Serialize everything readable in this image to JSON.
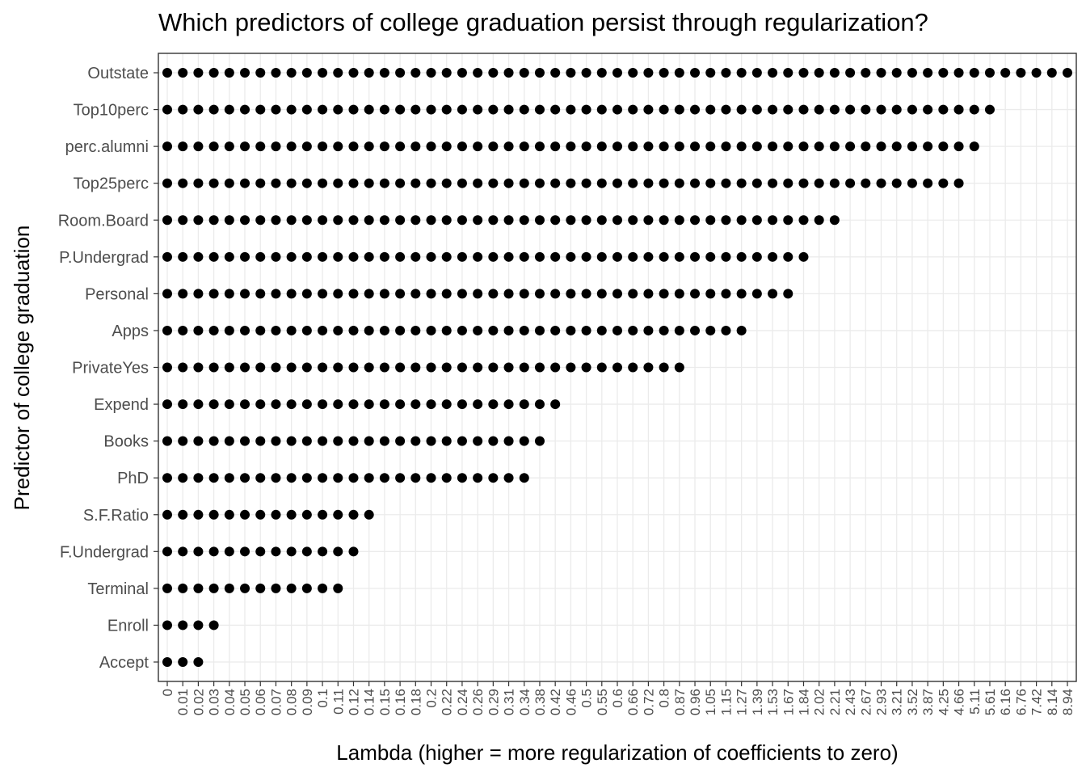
{
  "chart_data": {
    "type": "scatter",
    "title": "Which predictors of college graduation persist through regularization?",
    "xlabel": "Lambda (higher = more regularization of coefficients to zero)",
    "ylabel": "Predictor of college graduation",
    "x_axis_scale": "categorical",
    "grid": true,
    "x_tick_labels": [
      "0",
      "0.01",
      "0.02",
      "0.03",
      "0.04",
      "0.05",
      "0.06",
      "0.07",
      "0.08",
      "0.09",
      "0.1",
      "0.11",
      "0.12",
      "0.14",
      "0.15",
      "0.16",
      "0.18",
      "0.2",
      "0.22",
      "0.24",
      "0.26",
      "0.29",
      "0.31",
      "0.34",
      "0.38",
      "0.42",
      "0.46",
      "0.5",
      "0.55",
      "0.6",
      "0.66",
      "0.72",
      "0.8",
      "0.87",
      "0.96",
      "1.05",
      "1.15",
      "1.27",
      "1.39",
      "1.53",
      "1.67",
      "1.84",
      "2.02",
      "2.21",
      "2.43",
      "2.67",
      "2.93",
      "3.21",
      "3.52",
      "3.87",
      "4.25",
      "4.66",
      "5.11",
      "5.61",
      "6.16",
      "6.76",
      "7.42",
      "8.14",
      "8.94"
    ],
    "categories": [
      "Accept",
      "Enroll",
      "Terminal",
      "F.Undergrad",
      "S.F.Ratio",
      "PhD",
      "Books",
      "Expend",
      "PrivateYes",
      "Apps",
      "Personal",
      "P.Undergrad",
      "Room.Board",
      "Top25perc",
      "perc.alumni",
      "Top10perc",
      "Outstate"
    ],
    "series": [
      {
        "predictor": "Outstate",
        "max_lambda": 8.94
      },
      {
        "predictor": "Top10perc",
        "max_lambda": 5.61
      },
      {
        "predictor": "perc.alumni",
        "max_lambda": 5.11
      },
      {
        "predictor": "Top25perc",
        "max_lambda": 4.66
      },
      {
        "predictor": "Room.Board",
        "max_lambda": 2.21
      },
      {
        "predictor": "P.Undergrad",
        "max_lambda": 1.84
      },
      {
        "predictor": "Personal",
        "max_lambda": 1.67
      },
      {
        "predictor": "Apps",
        "max_lambda": 1.27
      },
      {
        "predictor": "PrivateYes",
        "max_lambda": 0.87
      },
      {
        "predictor": "Expend",
        "max_lambda": 0.42
      },
      {
        "predictor": "Books",
        "max_lambda": 0.38
      },
      {
        "predictor": "PhD",
        "max_lambda": 0.34
      },
      {
        "predictor": "S.F.Ratio",
        "max_lambda": 0.14
      },
      {
        "predictor": "F.Undergrad",
        "max_lambda": 0.12
      },
      {
        "predictor": "Terminal",
        "max_lambda": 0.11
      },
      {
        "predictor": "Enroll",
        "max_lambda": 0.03
      },
      {
        "predictor": "Accept",
        "max_lambda": 0.02
      }
    ],
    "point_color": "#000000",
    "grid_color": "#ebebeb",
    "panel_border_color": "#333333"
  }
}
